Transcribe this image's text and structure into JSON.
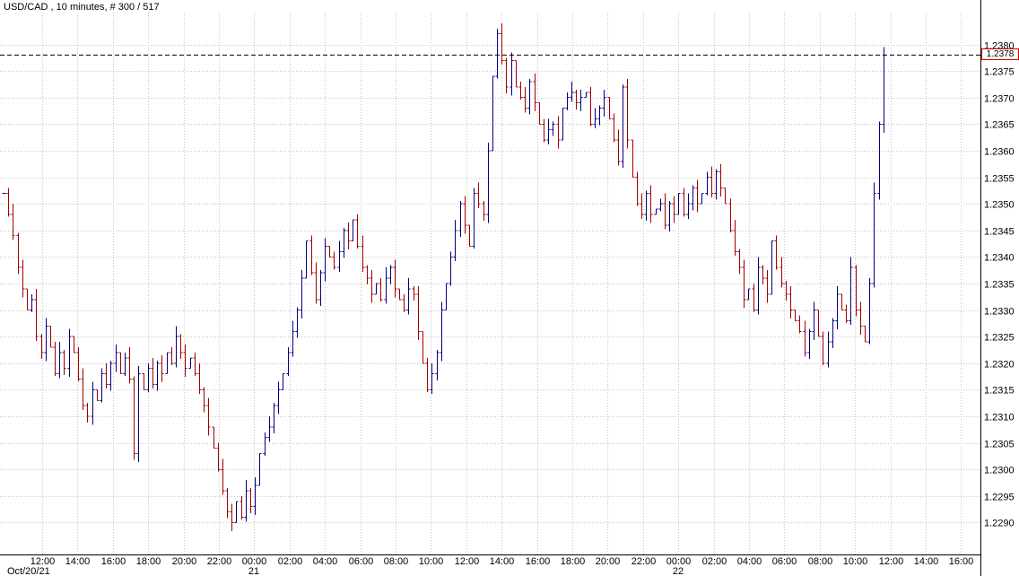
{
  "chart_data": {
    "type": "ohlc",
    "title": "USD/CAD , 10 minutes, # 300 / 517",
    "symbol": "USD/CAD",
    "timeframe": "10 minutes",
    "bar_counter": "# 300 / 517",
    "current_price": "1.2378",
    "price_range": {
      "min": 1.2284,
      "max": 1.2386
    },
    "grid": true,
    "y_ticks": [
      "1.2380",
      "1.2375",
      "1.2370",
      "1.2365",
      "1.2360",
      "1.2355",
      "1.2350",
      "1.2345",
      "1.2340",
      "1.2335",
      "1.2330",
      "1.2325",
      "1.2320",
      "1.2315",
      "1.2310",
      "1.2305",
      "1.2300",
      "1.2295",
      "1.2290"
    ],
    "x_ticks": [
      "12:00",
      "14:00",
      "16:00",
      "18:00",
      "20:00",
      "22:00",
      "00:00",
      "02:00",
      "04:00",
      "06:00",
      "08:00",
      "10:00",
      "12:00",
      "14:00",
      "16:00",
      "18:00",
      "20:00",
      "22:00",
      "00:00",
      "02:00",
      "04:00",
      "06:00",
      "08:00",
      "10:00",
      "12:00",
      "14:00",
      "16:00"
    ],
    "x_day_labels": [
      {
        "label": "Oct/20/21",
        "tick_index": 0,
        "align": "left"
      },
      {
        "label": "21",
        "tick_index": 6,
        "align": "center"
      },
      {
        "label": "22",
        "tick_index": 18,
        "align": "center"
      }
    ],
    "colors": {
      "up": "#000080",
      "down": "#a00000",
      "grid": "#c6c6c6",
      "dashed_line": "#000000",
      "price_box_border": "#cc0000",
      "axis_text": "#000000",
      "background": "#ffffff"
    },
    "closes": [
      1.2352,
      1.2348,
      1.2344,
      1.2338,
      1.2334,
      1.233,
      1.2332,
      1.2325,
      1.2322,
      1.2327,
      1.2323,
      1.2318,
      1.2322,
      1.2319,
      1.2325,
      1.2322,
      1.2317,
      1.2312,
      1.231,
      1.2315,
      1.2313,
      1.2318,
      1.2316,
      1.232,
      1.2322,
      1.2318,
      1.2321,
      1.2317,
      1.2303,
      1.2318,
      1.2315,
      1.2319,
      1.2316,
      1.232,
      1.2318,
      1.2322,
      1.232,
      1.2325,
      1.2322,
      1.2319,
      1.2321,
      1.2318,
      1.2315,
      1.2312,
      1.2308,
      1.2304,
      1.23,
      1.2296,
      1.2292,
      1.229,
      1.2294,
      1.2291,
      1.2296,
      1.2293,
      1.2297,
      1.2303,
      1.2306,
      1.2308,
      1.2312,
      1.2315,
      1.2318,
      1.2322,
      1.2326,
      1.233,
      1.2336,
      1.2343,
      1.2337,
      1.2332,
      1.2337,
      1.2342,
      1.234,
      1.2338,
      1.2341,
      1.2345,
      1.2343,
      1.2347,
      1.2342,
      1.2338,
      1.2336,
      1.2333,
      1.2335,
      1.2332,
      1.2336,
      1.2338,
      1.2334,
      1.2332,
      1.233,
      1.2334,
      1.2333,
      1.2326,
      1.232,
      1.2315,
      1.2318,
      1.2322,
      1.233,
      1.2335,
      1.234,
      1.2345,
      1.235,
      1.2346,
      1.2342,
      1.2352,
      1.235,
      1.2348,
      1.236,
      1.2374,
      1.2382,
      1.2377,
      1.2372,
      1.2377,
      1.2372,
      1.237,
      1.2368,
      1.2373,
      1.2369,
      1.2365,
      1.2362,
      1.2364,
      1.2365,
      1.2362,
      1.2368,
      1.237,
      1.2371,
      1.2369,
      1.237,
      1.2371,
      1.2365,
      1.2366,
      1.2368,
      1.237,
      1.2366,
      1.2362,
      1.2358,
      1.2372,
      1.2362,
      1.2355,
      1.235,
      1.2348,
      1.2352,
      1.2348,
      1.2349,
      1.235,
      1.2346,
      1.235,
      1.2348,
      1.2352,
      1.2348,
      1.235,
      1.2353,
      1.235,
      1.2352,
      1.2355,
      1.2352,
      1.2356,
      1.2353,
      1.235,
      1.2345,
      1.2341,
      1.2338,
      1.2332,
      1.2334,
      1.233,
      1.2338,
      1.2336,
      1.2333,
      1.2343,
      1.2338,
      1.2335,
      1.2333,
      1.233,
      1.2328,
      1.2326,
      1.2322,
      1.2326,
      1.233,
      1.2325,
      1.232,
      1.2324,
      1.2328,
      1.2333,
      1.233,
      1.2328,
      1.2338,
      1.233,
      1.2327,
      1.2324,
      1.2335,
      1.2352,
      1.2365,
      1.2378
    ]
  }
}
